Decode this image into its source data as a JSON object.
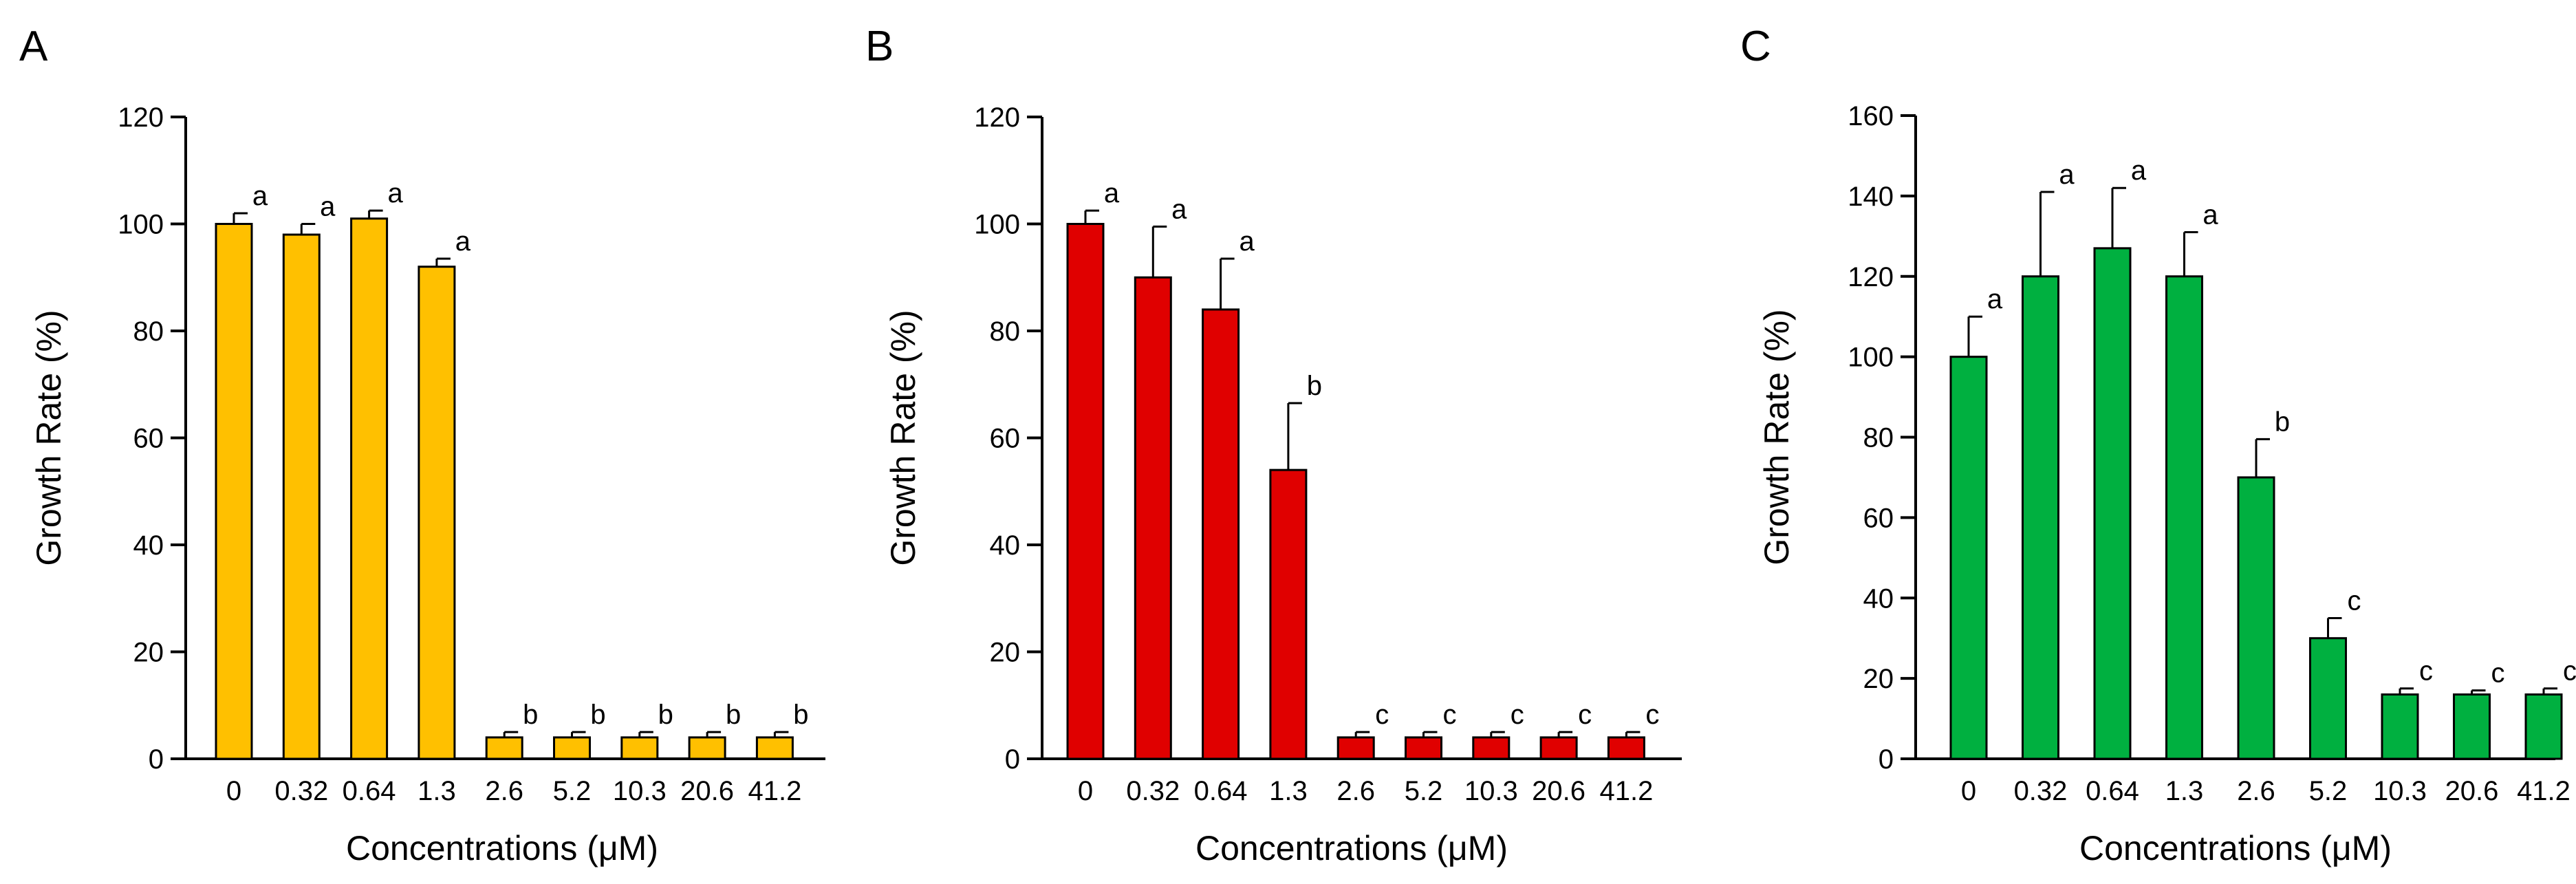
{
  "chart_data": [
    {
      "type": "bar",
      "panel": "A",
      "color": "#FFC000",
      "categories": [
        "0",
        "0.32",
        "0.64",
        "1.3",
        "2.6",
        "5.2",
        "10.3",
        "20.6",
        "41.2"
      ],
      "values": [
        100,
        98,
        101,
        92,
        4,
        4,
        4,
        4,
        4
      ],
      "errors": [
        2,
        2,
        1.5,
        1.5,
        1,
        1,
        1,
        1,
        1
      ],
      "significance": [
        "a",
        "a",
        "a",
        "a",
        "b",
        "b",
        "b",
        "b",
        "b"
      ],
      "ylim": [
        0,
        120
      ],
      "yticks": [
        0,
        20,
        40,
        60,
        80,
        100,
        120
      ],
      "xlabel": "Concentrations (μM)",
      "ylabel": "Growth Rate (%)",
      "grid": false
    },
    {
      "type": "bar",
      "panel": "B",
      "color": "#E00000",
      "categories": [
        "0",
        "0.32",
        "0.64",
        "1.3",
        "2.6",
        "5.2",
        "10.3",
        "20.6",
        "41.2"
      ],
      "values": [
        100,
        90,
        84,
        54,
        4,
        4,
        4,
        4,
        4
      ],
      "errors": [
        2.5,
        9.5,
        9.5,
        12.5,
        1,
        1,
        1,
        1,
        1
      ],
      "significance": [
        "a",
        "a",
        "a",
        "b",
        "c",
        "c",
        "c",
        "c",
        "c"
      ],
      "ylim": [
        0,
        120
      ],
      "yticks": [
        0,
        20,
        40,
        60,
        80,
        100,
        120
      ],
      "xlabel": "Concentrations (μM)",
      "ylabel": "Growth Rate (%)",
      "grid": false
    },
    {
      "type": "bar",
      "panel": "C",
      "color": "#00B040",
      "categories": [
        "0",
        "0.32",
        "0.64",
        "1.3",
        "2.6",
        "5.2",
        "10.3",
        "20.6",
        "41.2"
      ],
      "values": [
        100,
        120,
        127,
        120,
        70,
        30,
        16,
        16,
        16
      ],
      "errors": [
        10,
        21,
        15,
        11,
        9.5,
        5,
        1.5,
        1,
        1.5
      ],
      "significance": [
        "a",
        "a",
        "a",
        "a",
        "b",
        "c",
        "c",
        "c",
        "c"
      ],
      "ylim": [
        0,
        160
      ],
      "yticks": [
        0,
        20,
        40,
        60,
        80,
        100,
        120,
        140,
        160
      ],
      "xlabel": "Concentrations (μM)",
      "ylabel": "Growth Rate (%)",
      "grid": false
    }
  ]
}
